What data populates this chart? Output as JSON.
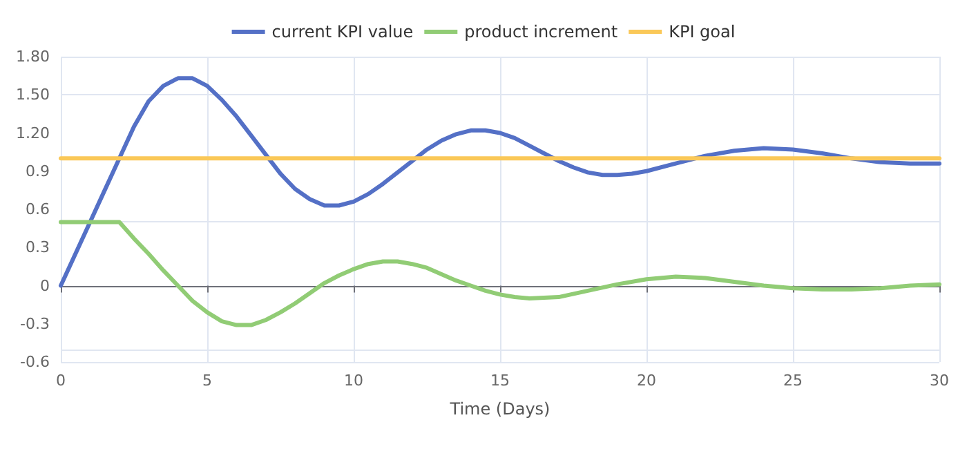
{
  "chart_data": {
    "type": "line",
    "xlabel": "Time (Days)",
    "xlim": [
      0,
      30
    ],
    "xticks": [
      0,
      5,
      10,
      15,
      20,
      25,
      30
    ],
    "ylim": [
      -0.6,
      1.8
    ],
    "yticks": [
      {
        "value": -0.6,
        "label": "-0.6"
      },
      {
        "value": -0.3,
        "label": "-0.3"
      },
      0,
      0.3,
      0.6,
      0.9,
      {
        "value": 1.2,
        "label": "1.20"
      },
      {
        "value": 1.5,
        "label": "1.50"
      },
      {
        "value": 1.8,
        "label": "1.80"
      }
    ],
    "grid": true,
    "legend": "top",
    "marker": "none",
    "line_style": "solid",
    "series": [
      {
        "name": "current KPI value",
        "color": "#5470c6",
        "x": [
          0,
          0.5,
          1,
          1.5,
          2,
          2.5,
          3,
          3.5,
          4,
          4.5,
          5,
          5.5,
          6,
          6.5,
          7,
          7.5,
          8,
          8.5,
          9,
          9.5,
          10,
          10.5,
          11,
          11.5,
          12,
          12.5,
          13,
          13.5,
          14,
          14.5,
          15,
          15.5,
          16,
          16.5,
          17,
          17.5,
          18,
          18.5,
          19,
          19.5,
          20,
          21,
          22,
          23,
          24,
          25,
          26,
          27,
          28,
          29,
          30
        ],
        "values": [
          0,
          0.25,
          0.5,
          0.75,
          1.0,
          1.25,
          1.45,
          1.57,
          1.63,
          1.63,
          1.57,
          1.46,
          1.33,
          1.18,
          1.03,
          0.88,
          0.76,
          0.68,
          0.63,
          0.63,
          0.66,
          0.72,
          0.8,
          0.89,
          0.98,
          1.07,
          1.14,
          1.19,
          1.22,
          1.22,
          1.2,
          1.16,
          1.1,
          1.04,
          0.98,
          0.93,
          0.89,
          0.87,
          0.87,
          0.88,
          0.9,
          0.96,
          1.02,
          1.06,
          1.08,
          1.07,
          1.04,
          1.0,
          0.97,
          0.96,
          0.96
        ]
      },
      {
        "name": "product increment",
        "color": "#91cc75",
        "x": [
          0,
          2,
          2.5,
          3,
          3.5,
          4,
          4.5,
          5,
          5.5,
          6,
          6.5,
          7,
          7.5,
          8,
          8.5,
          9,
          9.5,
          10,
          10.5,
          11,
          11.5,
          12,
          12.5,
          13,
          13.5,
          14,
          14.5,
          15,
          15.5,
          16,
          17,
          18,
          19,
          20,
          21,
          22,
          23,
          24,
          25,
          26,
          27,
          28,
          29,
          30
        ],
        "values": [
          0.5,
          0.5,
          0.37,
          0.25,
          0.12,
          0.0,
          -0.12,
          -0.21,
          -0.28,
          -0.31,
          -0.31,
          -0.27,
          -0.21,
          -0.14,
          -0.06,
          0.02,
          0.08,
          0.13,
          0.17,
          0.19,
          0.19,
          0.17,
          0.14,
          0.09,
          0.04,
          0.0,
          -0.04,
          -0.07,
          -0.09,
          -0.1,
          -0.09,
          -0.04,
          0.01,
          0.05,
          0.07,
          0.06,
          0.03,
          0.0,
          -0.02,
          -0.03,
          -0.03,
          -0.02,
          0.0,
          0.01
        ]
      },
      {
        "name": "KPI goal",
        "color": "#fac858",
        "x": [
          0,
          30
        ],
        "values": [
          1,
          1
        ]
      }
    ]
  }
}
